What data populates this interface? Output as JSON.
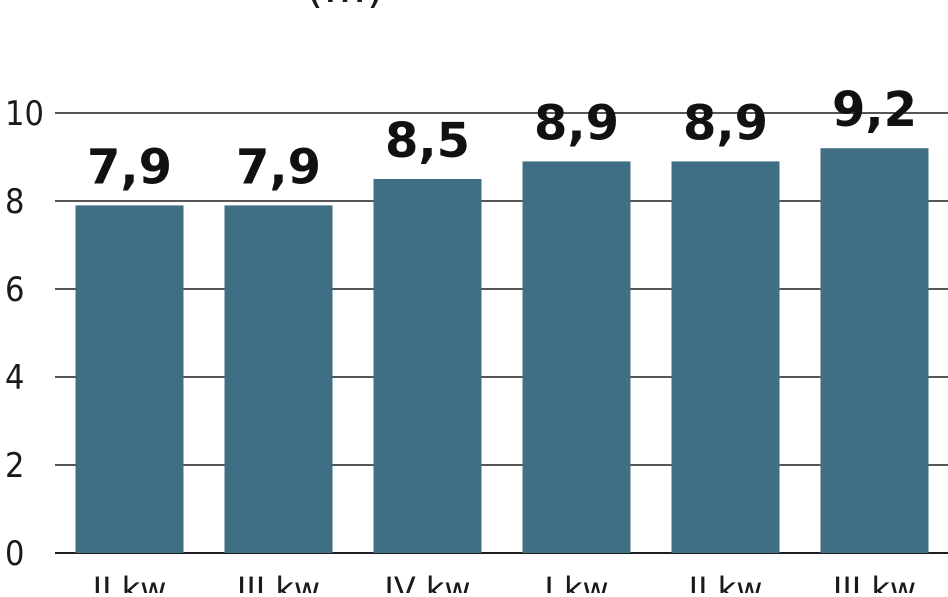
{
  "chart_data": {
    "type": "bar",
    "title": "(…)",
    "categories": [
      "II kw",
      "III kw",
      "IV kw",
      "I kw",
      "II kw",
      "III kw"
    ],
    "values": [
      7.9,
      7.9,
      8.5,
      8.9,
      8.9,
      9.2
    ],
    "data_labels": [
      "7,9",
      "7,9",
      "8,5",
      "8,9",
      "8,9",
      "9,2"
    ],
    "ylim": [
      0,
      10
    ],
    "yticks": [
      0,
      2,
      4,
      6,
      8,
      10
    ],
    "ytick_labels": [
      "0",
      "2",
      "4",
      "6",
      "8",
      "10"
    ],
    "grid": true,
    "xlabel": "",
    "ylabel": "",
    "colors": {
      "bar": "#406f85",
      "grid": "#1f1f1f",
      "text": "#111111"
    }
  }
}
